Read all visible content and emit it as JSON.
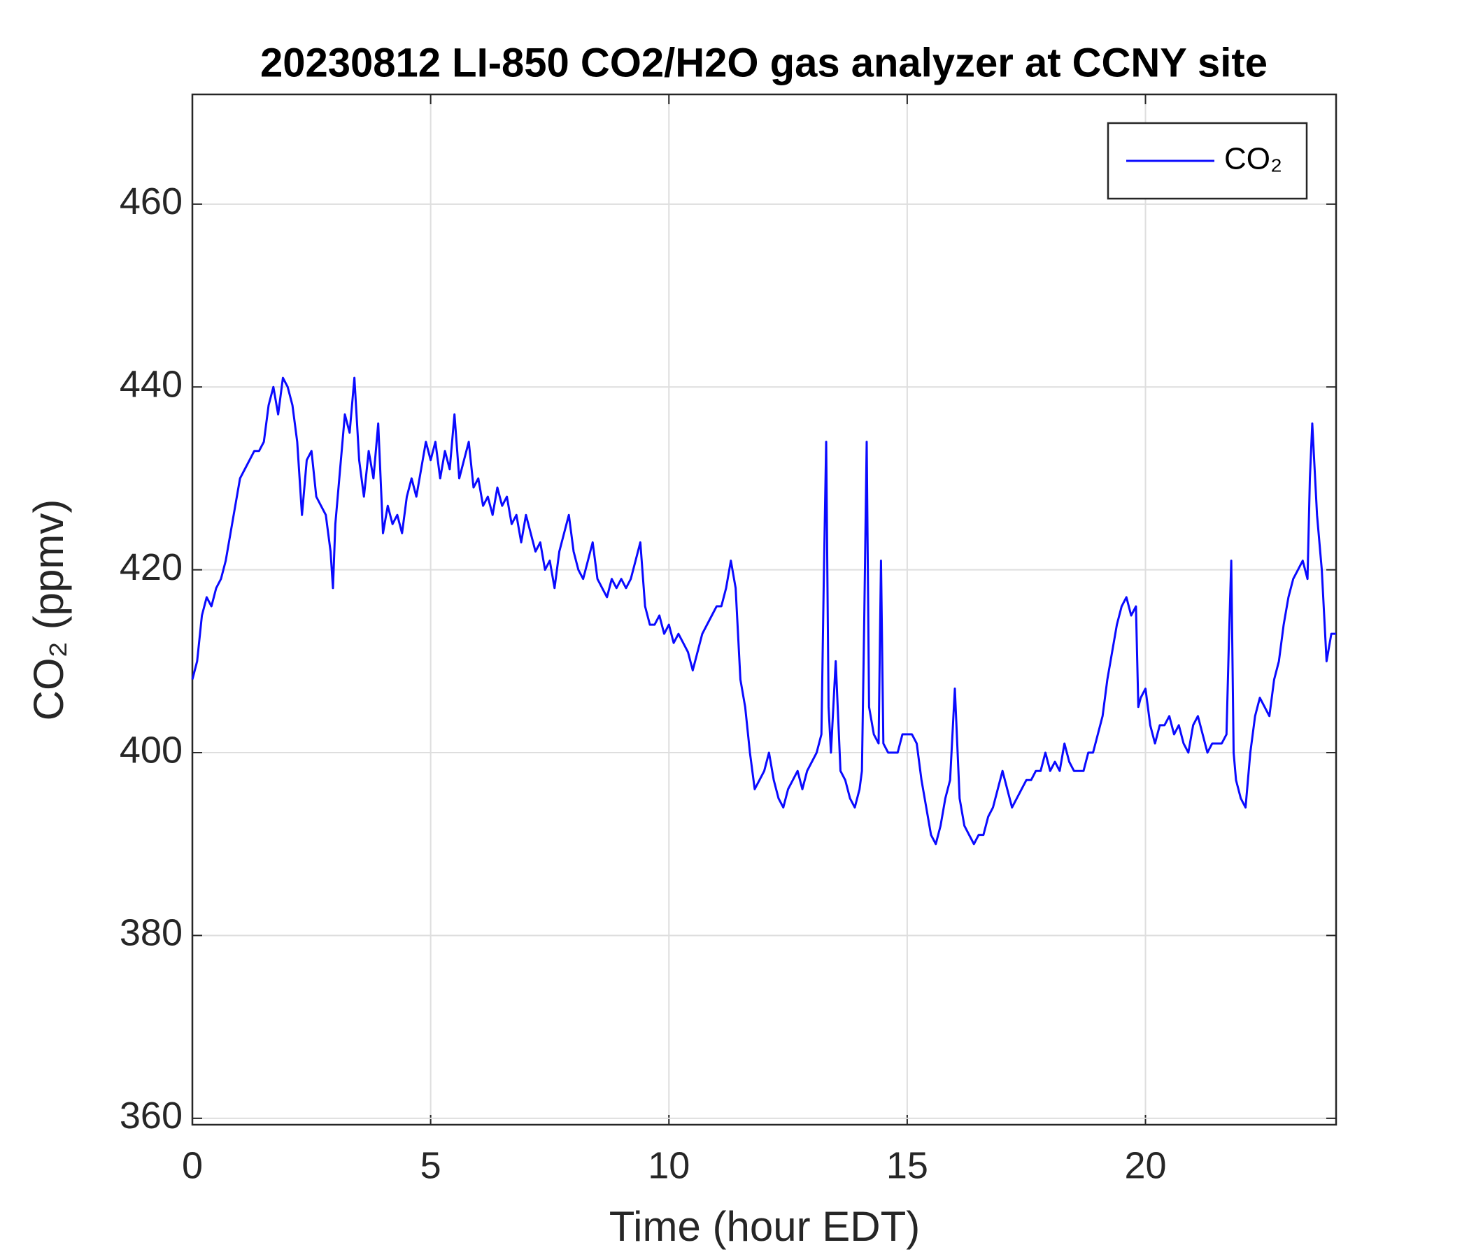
{
  "chart_data": {
    "type": "line",
    "title": "20230812 LI-850 CO2/H2O gas analyzer at CCNY site",
    "xlabel": "Time (hour EDT)",
    "ylabel": "CO₂ (ppmv)",
    "xlim": [
      0,
      24
    ],
    "ylim": [
      359.3,
      472
    ],
    "xticks": [
      0,
      5,
      10,
      15,
      20
    ],
    "yticks": [
      360,
      380,
      400,
      420,
      440,
      460
    ],
    "grid": true,
    "legend": "upper-right",
    "x": [
      0.0,
      0.1,
      0.2,
      0.3,
      0.4,
      0.5,
      0.6,
      0.7,
      0.8,
      0.9,
      1.0,
      1.1,
      1.2,
      1.3,
      1.4,
      1.5,
      1.6,
      1.7,
      1.8,
      1.9,
      2.0,
      2.1,
      2.2,
      2.3,
      2.4,
      2.5,
      2.6,
      2.7,
      2.8,
      2.9,
      2.95,
      3.0,
      3.1,
      3.2,
      3.3,
      3.4,
      3.5,
      3.6,
      3.7,
      3.8,
      3.9,
      4.0,
      4.1,
      4.2,
      4.3,
      4.4,
      4.5,
      4.6,
      4.7,
      4.8,
      4.9,
      5.0,
      5.1,
      5.2,
      5.3,
      5.4,
      5.5,
      5.6,
      5.7,
      5.8,
      5.9,
      6.0,
      6.1,
      6.2,
      6.3,
      6.4,
      6.5,
      6.6,
      6.7,
      6.8,
      6.9,
      7.0,
      7.1,
      7.2,
      7.3,
      7.4,
      7.5,
      7.6,
      7.7,
      7.8,
      7.9,
      8.0,
      8.1,
      8.2,
      8.3,
      8.4,
      8.5,
      8.6,
      8.7,
      8.8,
      8.9,
      9.0,
      9.1,
      9.2,
      9.3,
      9.4,
      9.5,
      9.6,
      9.7,
      9.8,
      9.9,
      10.0,
      10.1,
      10.2,
      10.3,
      10.4,
      10.5,
      10.6,
      10.7,
      10.8,
      10.9,
      11.0,
      11.1,
      11.2,
      11.3,
      11.4,
      11.5,
      11.6,
      11.7,
      11.8,
      11.9,
      12.0,
      12.1,
      12.2,
      12.3,
      12.4,
      12.5,
      12.6,
      12.7,
      12.8,
      12.9,
      13.0,
      13.1,
      13.2,
      13.25,
      13.3,
      13.35,
      13.4,
      13.5,
      13.6,
      13.7,
      13.8,
      13.9,
      14.0,
      14.05,
      14.1,
      14.15,
      14.2,
      14.3,
      14.4,
      14.45,
      14.5,
      14.6,
      14.7,
      14.8,
      14.9,
      15.0,
      15.1,
      15.2,
      15.3,
      15.4,
      15.5,
      15.6,
      15.7,
      15.8,
      15.9,
      16.0,
      16.1,
      16.2,
      16.3,
      16.4,
      16.5,
      16.6,
      16.7,
      16.8,
      16.9,
      17.0,
      17.1,
      17.2,
      17.3,
      17.4,
      17.5,
      17.6,
      17.7,
      17.8,
      17.9,
      18.0,
      18.1,
      18.2,
      18.3,
      18.4,
      18.5,
      18.6,
      18.7,
      18.8,
      18.9,
      19.0,
      19.1,
      19.2,
      19.3,
      19.4,
      19.5,
      19.6,
      19.7,
      19.8,
      19.85,
      19.9,
      20.0,
      20.1,
      20.2,
      20.3,
      20.4,
      20.5,
      20.6,
      20.7,
      20.8,
      20.9,
      21.0,
      21.1,
      21.2,
      21.3,
      21.4,
      21.5,
      21.6,
      21.7,
      21.75,
      21.8,
      21.85,
      21.9,
      22.0,
      22.1,
      22.2,
      22.3,
      22.4,
      22.5,
      22.6,
      22.7,
      22.8,
      22.9,
      23.0,
      23.1,
      23.2,
      23.3,
      23.4,
      23.45,
      23.5,
      23.6,
      23.7,
      23.8,
      23.9,
      24.0
    ],
    "series": [
      {
        "name": "CO₂",
        "color": "#0a0aff",
        "values": [
          408,
          410,
          415,
          417,
          416,
          418,
          419,
          421,
          424,
          427,
          430,
          431,
          432,
          433,
          433,
          434,
          438,
          440,
          437,
          441,
          440,
          438,
          434,
          426,
          432,
          433,
          428,
          427,
          426,
          422,
          418,
          425,
          431,
          437,
          435,
          441,
          432,
          428,
          433,
          430,
          436,
          424,
          427,
          425,
          426,
          424,
          428,
          430,
          428,
          431,
          434,
          432,
          434,
          430,
          433,
          431,
          437,
          430,
          432,
          434,
          429,
          430,
          427,
          428,
          426,
          429,
          427,
          428,
          425,
          426,
          423,
          426,
          424,
          422,
          423,
          420,
          421,
          418,
          422,
          424,
          426,
          422,
          420,
          419,
          421,
          423,
          419,
          418,
          417,
          419,
          418,
          419,
          418,
          419,
          421,
          423,
          416,
          414,
          414,
          415,
          413,
          414,
          412,
          413,
          412,
          411,
          409,
          411,
          413,
          414,
          415,
          416,
          416,
          418,
          421,
          418,
          408,
          405,
          400,
          396,
          397,
          398,
          400,
          397,
          395,
          394,
          396,
          397,
          398,
          396,
          398,
          399,
          400,
          402,
          419,
          434,
          405,
          400,
          410,
          398,
          397,
          395,
          394,
          396,
          398,
          415,
          434,
          405,
          402,
          401,
          421,
          401,
          400,
          400,
          400,
          402,
          402,
          402,
          401,
          397,
          394,
          391,
          390,
          392,
          395,
          397,
          407,
          395,
          392,
          391,
          390,
          391,
          391,
          393,
          394,
          396,
          398,
          396,
          394,
          395,
          396,
          397,
          397,
          398,
          398,
          400,
          398,
          399,
          398,
          401,
          399,
          398,
          398,
          398,
          400,
          400,
          402,
          404,
          408,
          411,
          414,
          416,
          417,
          415,
          416,
          405,
          406,
          407,
          403,
          401,
          403,
          403,
          404,
          402,
          403,
          401,
          400,
          403,
          404,
          402,
          400,
          401,
          401,
          401,
          402,
          412,
          421,
          400,
          397,
          395,
          394,
          400,
          404,
          406,
          405,
          404,
          408,
          410,
          414,
          417,
          419,
          420,
          421,
          419,
          430,
          436,
          426,
          420,
          410,
          413,
          413
        ]
      }
    ]
  }
}
